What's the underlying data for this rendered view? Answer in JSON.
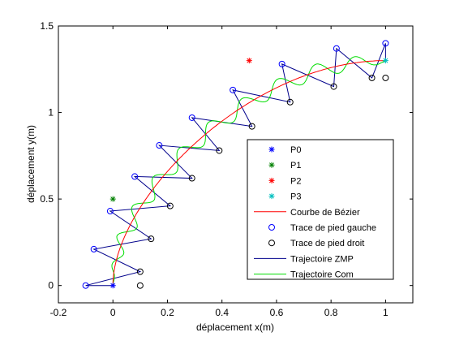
{
  "chart_data": {
    "type": "line",
    "xlabel": "déplacement x(m)",
    "ylabel": "déplacement y(m)",
    "xlim": [
      -0.2,
      1.1
    ],
    "ylim": [
      -0.1,
      1.5
    ],
    "xticks": [
      "-0.2",
      "0",
      "0.2",
      "0.4",
      "0.6",
      "0.8",
      "1"
    ],
    "xtick_values": [
      -0.2,
      0,
      0.2,
      0.4,
      0.6,
      0.8,
      1.0
    ],
    "yticks": [
      "0",
      "0.5",
      "1",
      "1.5"
    ],
    "ytick_values": [
      0,
      0.5,
      1.0,
      1.5
    ],
    "legend_position": "center-right",
    "control_points": [
      {
        "name": "P0",
        "x": 0.0,
        "y": 0.0,
        "color": "#0000ff"
      },
      {
        "name": "P1",
        "x": 0.0,
        "y": 0.5,
        "color": "#008000"
      },
      {
        "name": "P2",
        "x": 0.5,
        "y": 1.3,
        "color": "#ff0000"
      },
      {
        "name": "P3",
        "x": 1.0,
        "y": 1.3,
        "color": "#00bfbf"
      }
    ],
    "series": [
      {
        "name": "Courbe de Bézier",
        "kind": "bezier",
        "color": "#ff0000"
      },
      {
        "name": "Trace de pied gauche",
        "kind": "markers",
        "color": "#0000ff",
        "x": [
          -0.1,
          -0.07,
          -0.01,
          0.08,
          0.17,
          0.29,
          0.44,
          0.62,
          0.82,
          1.0
        ],
        "y": [
          0.0,
          0.21,
          0.43,
          0.63,
          0.81,
          0.97,
          1.13,
          1.28,
          1.37,
          1.4
        ]
      },
      {
        "name": "Trace de pied droit",
        "kind": "markers",
        "color": "#000000",
        "x": [
          0.1,
          0.1,
          0.14,
          0.21,
          0.29,
          0.39,
          0.51,
          0.65,
          0.81,
          0.95,
          1.0
        ],
        "y": [
          0.0,
          0.08,
          0.27,
          0.46,
          0.62,
          0.78,
          0.92,
          1.06,
          1.15,
          1.2,
          1.2
        ]
      },
      {
        "name": "Trajectoire ZMP",
        "kind": "line",
        "color": "#00008b",
        "x": [
          0.0,
          -0.1,
          0.1,
          -0.07,
          0.14,
          -0.01,
          0.21,
          0.08,
          0.29,
          0.17,
          0.39,
          0.29,
          0.51,
          0.44,
          0.65,
          0.62,
          0.81,
          0.82,
          0.95,
          1.0,
          1.0
        ],
        "y": [
          0.0,
          0.0,
          0.08,
          0.21,
          0.27,
          0.43,
          0.46,
          0.63,
          0.62,
          0.81,
          0.78,
          0.97,
          0.92,
          1.13,
          1.06,
          1.28,
          1.15,
          1.37,
          1.2,
          1.4,
          1.3
        ]
      },
      {
        "name": "Trajectoire Com",
        "kind": "wavy",
        "color": "#00dd00"
      }
    ]
  }
}
